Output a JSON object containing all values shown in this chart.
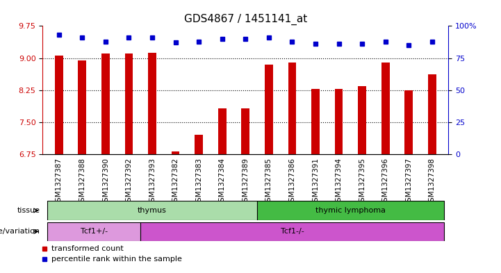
{
  "title": "GDS4867 / 1451141_at",
  "samples": [
    "GSM1327387",
    "GSM1327388",
    "GSM1327390",
    "GSM1327392",
    "GSM1327393",
    "GSM1327382",
    "GSM1327383",
    "GSM1327384",
    "GSM1327389",
    "GSM1327385",
    "GSM1327386",
    "GSM1327391",
    "GSM1327394",
    "GSM1327395",
    "GSM1327396",
    "GSM1327397",
    "GSM1327398"
  ],
  "transformed_count": [
    9.05,
    8.95,
    9.1,
    9.1,
    9.12,
    6.82,
    7.2,
    7.82,
    7.82,
    8.85,
    8.9,
    8.28,
    8.28,
    8.35,
    8.9,
    8.25,
    8.62
  ],
  "percentile_rank": [
    93,
    91,
    88,
    91,
    91,
    87,
    88,
    90,
    90,
    91,
    88,
    86,
    86,
    86,
    88,
    85,
    88
  ],
  "ylim_left": [
    6.75,
    9.75
  ],
  "ylim_right": [
    0,
    100
  ],
  "yticks_left": [
    6.75,
    7.5,
    8.25,
    9.0,
    9.75
  ],
  "yticks_right": [
    0,
    25,
    50,
    75,
    100
  ],
  "grid_lines": [
    7.5,
    8.25,
    9.0
  ],
  "bar_color": "#cc0000",
  "dot_color": "#0000cc",
  "tissue_groups": [
    {
      "label": "thymus",
      "start": 0,
      "end": 9,
      "color": "#aaddaa"
    },
    {
      "label": "thymic lymphoma",
      "start": 9,
      "end": 17,
      "color": "#44bb44"
    }
  ],
  "genotype_groups": [
    {
      "label": "Tcf1+/-",
      "start": 0,
      "end": 4,
      "color": "#dd99dd"
    },
    {
      "label": "Tcf1-/-",
      "start": 4,
      "end": 17,
      "color": "#cc55cc"
    }
  ],
  "tissue_label": "tissue",
  "genotype_label": "genotype/variation",
  "legend_bar_label": "transformed count",
  "legend_dot_label": "percentile rank within the sample",
  "bar_color_legend": "#cc0000",
  "dot_color_legend": "#0000cc",
  "background_color": "#ffffff",
  "plot_bg": "#ffffff",
  "title_fontsize": 11,
  "tick_fontsize": 7.5,
  "label_fontsize": 8,
  "bar_width": 0.35
}
